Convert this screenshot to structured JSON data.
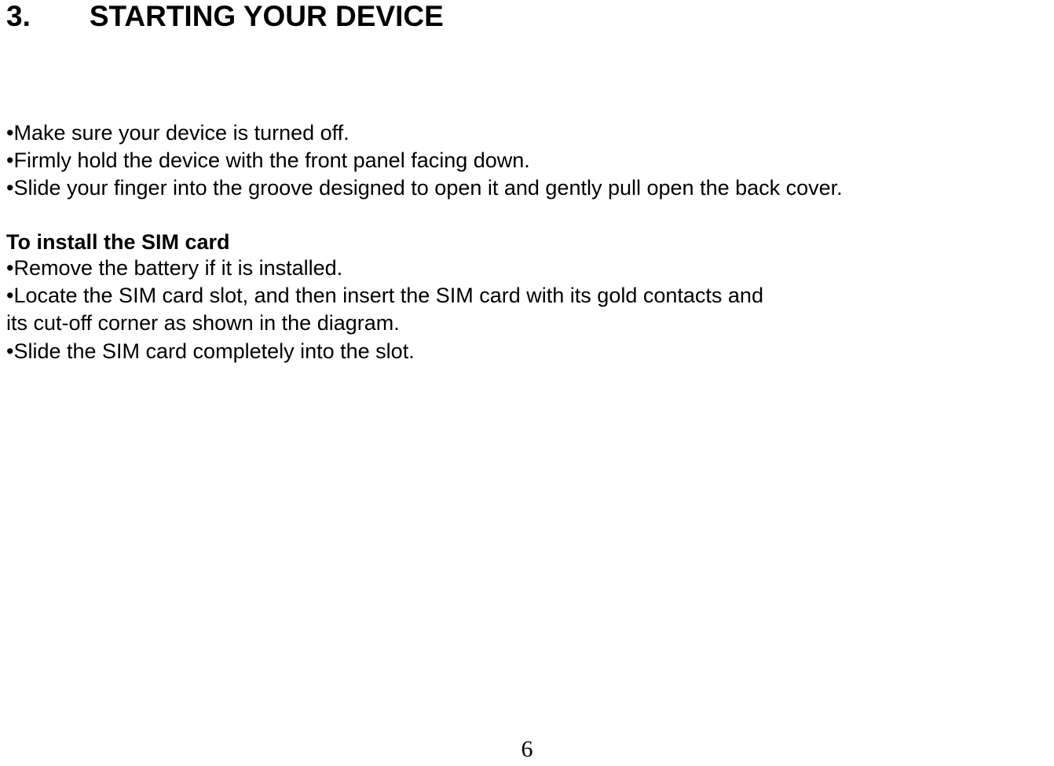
{
  "section": {
    "number": "3.",
    "title": "STARTING YOUR DEVICE"
  },
  "intro": {
    "item1": "•Make sure your device is turned off.",
    "item2": "•Firmly hold the device with the front panel facing down.",
    "item3": "•Slide your finger into the groove designed to open it and gently pull open the back cover."
  },
  "sim": {
    "heading": "To install the SIM card",
    "item1": "•Remove the battery if it is installed.",
    "item2": "•Locate the SIM card slot, and then insert the SIM card with its gold contacts and",
    "item2_cont": "its cut-off corner as shown in the diagram.",
    "item3": "•Slide the SIM card completely into the slot."
  },
  "page_number": "6",
  "styling": {
    "background_color": "#ffffff",
    "text_color": "#000000",
    "title_fontsize": 37,
    "body_fontsize": 27,
    "page_number_fontsize": 30,
    "font_family": "Arial",
    "page_number_font_family": "Times New Roman"
  }
}
